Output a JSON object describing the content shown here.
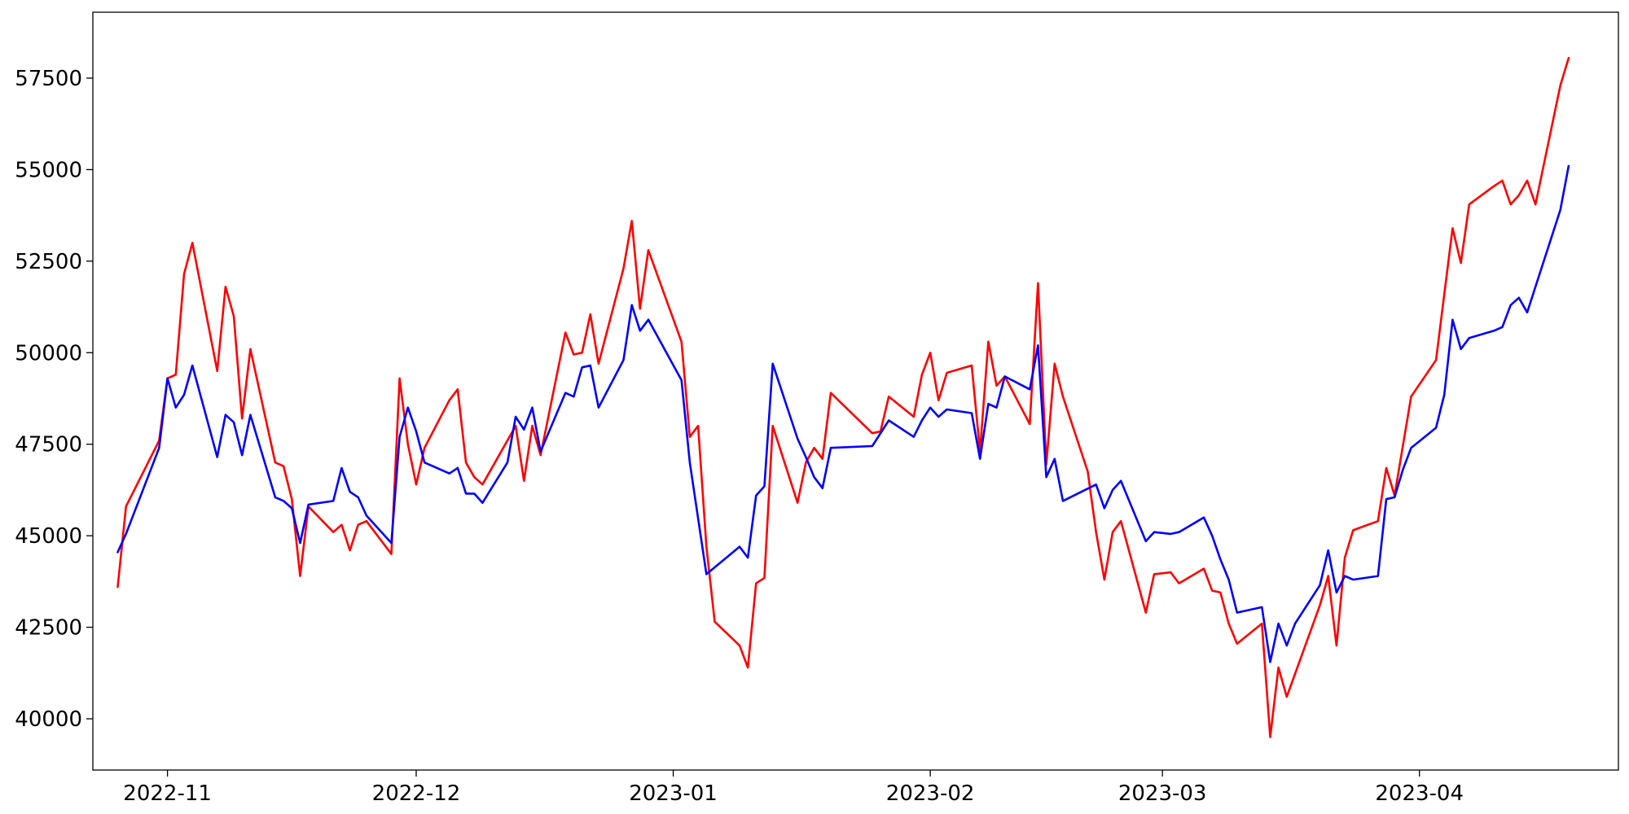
{
  "chart_data": {
    "type": "line",
    "title": "",
    "xlabel": "",
    "ylabel": "",
    "grid": false,
    "x_tick_labels": [
      {
        "date": "2022-11-01",
        "label": "2022-11"
      },
      {
        "date": "2022-12-01",
        "label": "2022-12"
      },
      {
        "date": "2023-01-01",
        "label": "2023-01"
      },
      {
        "date": "2023-02-01",
        "label": "2023-02"
      },
      {
        "date": "2023-03-01",
        "label": "2023-03"
      },
      {
        "date": "2023-04-01",
        "label": "2023-04"
      }
    ],
    "y_ticks": [
      40000,
      42500,
      45000,
      47500,
      50000,
      52500,
      55000,
      57500
    ],
    "ylim": [
      38600,
      59300
    ],
    "xlim": [
      "2022-10-23",
      "2023-04-25"
    ],
    "series": [
      {
        "color": "#ff0000",
        "points": [
          [
            "2022-10-26",
            43600
          ],
          [
            "2022-10-27",
            45800
          ],
          [
            "2022-10-31",
            47600
          ],
          [
            "2022-11-01",
            49300
          ],
          [
            "2022-11-02",
            49400
          ],
          [
            "2022-11-03",
            52150
          ],
          [
            "2022-11-04",
            53000
          ],
          [
            "2022-11-07",
            49500
          ],
          [
            "2022-11-08",
            51800
          ],
          [
            "2022-11-09",
            51000
          ],
          [
            "2022-11-10",
            48200
          ],
          [
            "2022-11-11",
            50100
          ],
          [
            "2022-11-14",
            47000
          ],
          [
            "2022-11-15",
            46900
          ],
          [
            "2022-11-16",
            46000
          ],
          [
            "2022-11-17",
            43900
          ],
          [
            "2022-11-18",
            45800
          ],
          [
            "2022-11-21",
            45100
          ],
          [
            "2022-11-22",
            45300
          ],
          [
            "2022-11-23",
            44600
          ],
          [
            "2022-11-24",
            45300
          ],
          [
            "2022-11-25",
            45400
          ],
          [
            "2022-11-28",
            44500
          ],
          [
            "2022-11-29",
            49300
          ],
          [
            "2022-11-30",
            47500
          ],
          [
            "2022-12-01",
            46400
          ],
          [
            "2022-12-02",
            47400
          ],
          [
            "2022-12-05",
            48700
          ],
          [
            "2022-12-06",
            49000
          ],
          [
            "2022-12-07",
            47000
          ],
          [
            "2022-12-08",
            46600
          ],
          [
            "2022-12-09",
            46400
          ],
          [
            "2022-12-12",
            47600
          ],
          [
            "2022-12-13",
            48000
          ],
          [
            "2022-12-14",
            46500
          ],
          [
            "2022-12-15",
            48000
          ],
          [
            "2022-12-16",
            47200
          ],
          [
            "2022-12-19",
            50550
          ],
          [
            "2022-12-20",
            49950
          ],
          [
            "2022-12-21",
            50000
          ],
          [
            "2022-12-22",
            51050
          ],
          [
            "2022-12-23",
            49700
          ],
          [
            "2022-12-26",
            52300
          ],
          [
            "2022-12-27",
            53600
          ],
          [
            "2022-12-28",
            51200
          ],
          [
            "2022-12-29",
            52800
          ],
          [
            "2023-01-02",
            50300
          ],
          [
            "2023-01-03",
            47700
          ],
          [
            "2023-01-04",
            48000
          ],
          [
            "2023-01-05",
            44700
          ],
          [
            "2023-01-06",
            42650
          ],
          [
            "2023-01-09",
            42000
          ],
          [
            "2023-01-10",
            41400
          ],
          [
            "2023-01-11",
            43700
          ],
          [
            "2023-01-12",
            43850
          ],
          [
            "2023-01-13",
            48000
          ],
          [
            "2023-01-16",
            45900
          ],
          [
            "2023-01-17",
            47000
          ],
          [
            "2023-01-18",
            47400
          ],
          [
            "2023-01-19",
            47100
          ],
          [
            "2023-01-20",
            48900
          ],
          [
            "2023-01-25",
            47800
          ],
          [
            "2023-01-26",
            47850
          ],
          [
            "2023-01-27",
            48800
          ],
          [
            "2023-01-30",
            48250
          ],
          [
            "2023-01-31",
            49400
          ],
          [
            "2023-02-01",
            50000
          ],
          [
            "2023-02-02",
            48700
          ],
          [
            "2023-02-03",
            49450
          ],
          [
            "2023-02-06",
            49650
          ],
          [
            "2023-02-07",
            47300
          ],
          [
            "2023-02-08",
            50300
          ],
          [
            "2023-02-09",
            49100
          ],
          [
            "2023-02-10",
            49350
          ],
          [
            "2023-02-13",
            48050
          ],
          [
            "2023-02-14",
            51900
          ],
          [
            "2023-02-15",
            46950
          ],
          [
            "2023-02-16",
            49700
          ],
          [
            "2023-02-17",
            48800
          ],
          [
            "2023-02-20",
            46750
          ],
          [
            "2023-02-21",
            45100
          ],
          [
            "2023-02-22",
            43800
          ],
          [
            "2023-02-23",
            45100
          ],
          [
            "2023-02-24",
            45400
          ],
          [
            "2023-02-27",
            42900
          ],
          [
            "2023-02-28",
            43950
          ],
          [
            "2023-03-02",
            44000
          ],
          [
            "2023-03-03",
            43700
          ],
          [
            "2023-03-06",
            44100
          ],
          [
            "2023-03-07",
            43500
          ],
          [
            "2023-03-08",
            43450
          ],
          [
            "2023-03-09",
            42600
          ],
          [
            "2023-03-10",
            42050
          ],
          [
            "2023-03-13",
            42600
          ],
          [
            "2023-03-14",
            39500
          ],
          [
            "2023-03-15",
            41400
          ],
          [
            "2023-03-16",
            40600
          ],
          [
            "2023-03-20",
            43100
          ],
          [
            "2023-03-21",
            43900
          ],
          [
            "2023-03-22",
            42000
          ],
          [
            "2023-03-23",
            44400
          ],
          [
            "2023-03-24",
            45150
          ],
          [
            "2023-03-27",
            45400
          ],
          [
            "2023-03-28",
            46850
          ],
          [
            "2023-03-29",
            46100
          ],
          [
            "2023-03-31",
            48800
          ],
          [
            "2023-04-03",
            49800
          ],
          [
            "2023-04-05",
            53400
          ],
          [
            "2023-04-06",
            52450
          ],
          [
            "2023-04-07",
            54050
          ],
          [
            "2023-04-10",
            54550
          ],
          [
            "2023-04-11",
            54700
          ],
          [
            "2023-04-12",
            54050
          ],
          [
            "2023-04-13",
            54300
          ],
          [
            "2023-04-14",
            54700
          ],
          [
            "2023-04-15",
            54050
          ],
          [
            "2023-04-18",
            57300
          ],
          [
            "2023-04-19",
            58050
          ]
        ]
      },
      {
        "color": "#0000ff",
        "points": [
          [
            "2022-10-26",
            44550
          ],
          [
            "2022-10-27",
            45050
          ],
          [
            "2022-10-31",
            47400
          ],
          [
            "2022-11-01",
            49300
          ],
          [
            "2022-11-02",
            48500
          ],
          [
            "2022-11-03",
            48850
          ],
          [
            "2022-11-04",
            49650
          ],
          [
            "2022-11-07",
            47150
          ],
          [
            "2022-11-08",
            48300
          ],
          [
            "2022-11-09",
            48100
          ],
          [
            "2022-11-10",
            47200
          ],
          [
            "2022-11-11",
            48300
          ],
          [
            "2022-11-14",
            46050
          ],
          [
            "2022-11-15",
            45950
          ],
          [
            "2022-11-16",
            45750
          ],
          [
            "2022-11-17",
            44800
          ],
          [
            "2022-11-18",
            45850
          ],
          [
            "2022-11-21",
            45950
          ],
          [
            "2022-11-22",
            46850
          ],
          [
            "2022-11-23",
            46200
          ],
          [
            "2022-11-24",
            46050
          ],
          [
            "2022-11-25",
            45550
          ],
          [
            "2022-11-28",
            44800
          ],
          [
            "2022-11-29",
            47700
          ],
          [
            "2022-11-30",
            48500
          ],
          [
            "2022-12-01",
            47850
          ],
          [
            "2022-12-02",
            47000
          ],
          [
            "2022-12-05",
            46700
          ],
          [
            "2022-12-06",
            46850
          ],
          [
            "2022-12-07",
            46150
          ],
          [
            "2022-12-08",
            46150
          ],
          [
            "2022-12-09",
            45900
          ],
          [
            "2022-12-12",
            47000
          ],
          [
            "2022-12-13",
            48250
          ],
          [
            "2022-12-14",
            47900
          ],
          [
            "2022-12-15",
            48500
          ],
          [
            "2022-12-16",
            47300
          ],
          [
            "2022-12-19",
            48900
          ],
          [
            "2022-12-20",
            48800
          ],
          [
            "2022-12-21",
            49600
          ],
          [
            "2022-12-22",
            49650
          ],
          [
            "2022-12-23",
            48500
          ],
          [
            "2022-12-26",
            49800
          ],
          [
            "2022-12-27",
            51300
          ],
          [
            "2022-12-28",
            50600
          ],
          [
            "2022-12-29",
            50900
          ],
          [
            "2023-01-02",
            49250
          ],
          [
            "2023-01-03",
            47000
          ],
          [
            "2023-01-05",
            43950
          ],
          [
            "2023-01-09",
            44700
          ],
          [
            "2023-01-10",
            44400
          ],
          [
            "2023-01-11",
            46100
          ],
          [
            "2023-01-12",
            46350
          ],
          [
            "2023-01-13",
            49700
          ],
          [
            "2023-01-16",
            47650
          ],
          [
            "2023-01-17",
            47150
          ],
          [
            "2023-01-18",
            46600
          ],
          [
            "2023-01-19",
            46300
          ],
          [
            "2023-01-20",
            47400
          ],
          [
            "2023-01-25",
            47450
          ],
          [
            "2023-01-27",
            48150
          ],
          [
            "2023-01-30",
            47700
          ],
          [
            "2023-01-31",
            48150
          ],
          [
            "2023-02-01",
            48500
          ],
          [
            "2023-02-02",
            48250
          ],
          [
            "2023-02-03",
            48450
          ],
          [
            "2023-02-06",
            48350
          ],
          [
            "2023-02-07",
            47100
          ],
          [
            "2023-02-08",
            48600
          ],
          [
            "2023-02-09",
            48500
          ],
          [
            "2023-02-10",
            49350
          ],
          [
            "2023-02-13",
            49000
          ],
          [
            "2023-02-14",
            50200
          ],
          [
            "2023-02-15",
            46600
          ],
          [
            "2023-02-16",
            47100
          ],
          [
            "2023-02-17",
            45950
          ],
          [
            "2023-02-21",
            46400
          ],
          [
            "2023-02-22",
            45750
          ],
          [
            "2023-02-23",
            46250
          ],
          [
            "2023-02-24",
            46500
          ],
          [
            "2023-02-27",
            44850
          ],
          [
            "2023-02-28",
            45100
          ],
          [
            "2023-03-02",
            45050
          ],
          [
            "2023-03-03",
            45100
          ],
          [
            "2023-03-06",
            45500
          ],
          [
            "2023-03-07",
            45000
          ],
          [
            "2023-03-08",
            44350
          ],
          [
            "2023-03-09",
            43800
          ],
          [
            "2023-03-10",
            42900
          ],
          [
            "2023-03-13",
            43050
          ],
          [
            "2023-03-14",
            41550
          ],
          [
            "2023-03-15",
            42600
          ],
          [
            "2023-03-16",
            42000
          ],
          [
            "2023-03-17",
            42600
          ],
          [
            "2023-03-20",
            43650
          ],
          [
            "2023-03-21",
            44600
          ],
          [
            "2023-03-22",
            43450
          ],
          [
            "2023-03-23",
            43900
          ],
          [
            "2023-03-24",
            43800
          ],
          [
            "2023-03-27",
            43900
          ],
          [
            "2023-03-28",
            46000
          ],
          [
            "2023-03-29",
            46050
          ],
          [
            "2023-03-30",
            46800
          ],
          [
            "2023-03-31",
            47400
          ],
          [
            "2023-04-03",
            47950
          ],
          [
            "2023-04-04",
            48850
          ],
          [
            "2023-04-05",
            50900
          ],
          [
            "2023-04-06",
            50100
          ],
          [
            "2023-04-07",
            50400
          ],
          [
            "2023-04-10",
            50600
          ],
          [
            "2023-04-11",
            50700
          ],
          [
            "2023-04-12",
            51300
          ],
          [
            "2023-04-13",
            51500
          ],
          [
            "2023-04-14",
            51100
          ],
          [
            "2023-04-18",
            53900
          ],
          [
            "2023-04-19",
            55100
          ]
        ]
      }
    ]
  }
}
